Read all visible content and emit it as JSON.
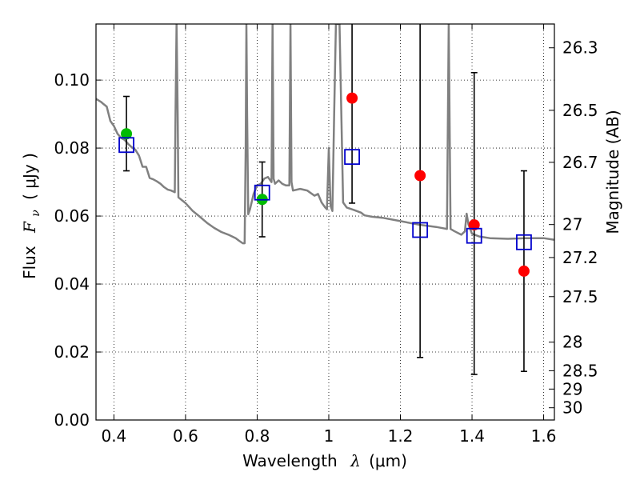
{
  "chart_data": {
    "type": "scatter",
    "xlabel_prefix": "Wavelength",
    "xlabel_symbol": "λ",
    "xlabel_unit": "(μm)",
    "ylabel_prefix": "Flux",
    "ylabel_symbol": "F",
    "ylabel_subscript": "ν",
    "ylabel_unit": "( μJy )",
    "right_ylabel": "Magnitude (AB)",
    "xlim": [
      0.35,
      1.63
    ],
    "ylim": [
      0.0,
      0.1165
    ],
    "x_ticks": [
      0.4,
      0.6,
      0.8,
      1.0,
      1.2,
      1.4,
      1.6
    ],
    "x_tick_labels": [
      "0.4",
      "0.6",
      "0.8",
      "1",
      "1.2",
      "1.4",
      "1.6"
    ],
    "y_ticks": [
      0.0,
      0.02,
      0.04,
      0.06,
      0.08,
      0.1
    ],
    "y_tick_labels": [
      "0.00",
      "0.02",
      "0.04",
      "0.06",
      "0.08",
      "0.10"
    ],
    "right_ticks": [
      {
        "label": "26.3",
        "flux": 0.1095
      },
      {
        "label": "26.5",
        "flux": 0.0911
      },
      {
        "label": "26.7",
        "flux": 0.0758
      },
      {
        "label": "27",
        "flux": 0.0575
      },
      {
        "label": "27.2",
        "flux": 0.0478
      },
      {
        "label": "27.5",
        "flux": 0.0363
      },
      {
        "label": "28",
        "flux": 0.0229
      },
      {
        "label": "28.5",
        "flux": 0.0145
      },
      {
        "label": "29",
        "flux": 0.0091
      },
      {
        "label": "30",
        "flux": 0.0036
      }
    ],
    "grid": true,
    "colors": {
      "sed": "#808080",
      "red_points": "#ff0000",
      "green_points": "#00bb00",
      "model_squares": "#0000cc",
      "errorbars": "#000000"
    },
    "series": [
      {
        "marker": "circle-green",
        "points": [
          {
            "x": 0.435,
            "y": 0.0842,
            "ylo": 0.0733,
            "yhi": 0.0952
          },
          {
            "x": 0.814,
            "y": 0.0649,
            "ylo": 0.0539,
            "yhi": 0.0759
          }
        ]
      },
      {
        "marker": "circle-red",
        "points": [
          {
            "x": 1.065,
            "y": 0.0947,
            "ylo": 0.0638,
            "yhi": 0.1165
          },
          {
            "x": 1.255,
            "y": 0.0719,
            "ylo": 0.0184,
            "yhi": 0.1165
          },
          {
            "x": 1.406,
            "y": 0.0574,
            "ylo": 0.0134,
            "yhi": 0.1022
          },
          {
            "x": 1.545,
            "y": 0.0438,
            "ylo": 0.0143,
            "yhi": 0.0733
          }
        ]
      },
      {
        "marker": "square-blue",
        "points": [
          {
            "x": 0.435,
            "y": 0.0809
          },
          {
            "x": 0.814,
            "y": 0.0669
          },
          {
            "x": 1.065,
            "y": 0.0774
          },
          {
            "x": 1.255,
            "y": 0.0559
          },
          {
            "x": 1.406,
            "y": 0.0542
          },
          {
            "x": 1.545,
            "y": 0.0523
          }
        ]
      },
      {
        "marker": "line-gray",
        "x": [
          0.35,
          0.365,
          0.37,
          0.38,
          0.39,
          0.4,
          0.41,
          0.42,
          0.43,
          0.44,
          0.45,
          0.46,
          0.47,
          0.48,
          0.49,
          0.5,
          0.51,
          0.52,
          0.53,
          0.54,
          0.55,
          0.56,
          0.57,
          0.572,
          0.575,
          0.578,
          0.58,
          0.6,
          0.62,
          0.64,
          0.66,
          0.68,
          0.7,
          0.72,
          0.74,
          0.75,
          0.76,
          0.765,
          0.768,
          0.77,
          0.772,
          0.775,
          0.78,
          0.79,
          0.8,
          0.81,
          0.82,
          0.83,
          0.84,
          0.843,
          0.846,
          0.85,
          0.86,
          0.87,
          0.88,
          0.89,
          0.893,
          0.896,
          0.9,
          0.92,
          0.94,
          0.96,
          0.97,
          0.98,
          0.99,
          0.995,
          1.0,
          1.005,
          1.01,
          1.015,
          1.02,
          1.025,
          1.03,
          1.04,
          1.05,
          1.07,
          1.09,
          1.1,
          1.12,
          1.15,
          1.2,
          1.25,
          1.3,
          1.33,
          1.335,
          1.34,
          1.35,
          1.37,
          1.38,
          1.385,
          1.39,
          1.4,
          1.42,
          1.45,
          1.5,
          1.55,
          1.6,
          1.63
        ],
        "y": [
          0.0945,
          0.0935,
          0.093,
          0.0922,
          0.088,
          0.0865,
          0.0842,
          0.083,
          0.0824,
          0.0812,
          0.0802,
          0.0795,
          0.0778,
          0.0745,
          0.0745,
          0.0712,
          0.0708,
          0.0702,
          0.0695,
          0.0685,
          0.0678,
          0.0675,
          0.067,
          0.09,
          0.1165,
          0.09,
          0.0655,
          0.0638,
          0.0615,
          0.0598,
          0.058,
          0.0565,
          0.0553,
          0.0545,
          0.0535,
          0.0527,
          0.052,
          0.052,
          0.08,
          0.1165,
          0.09,
          0.0605,
          0.062,
          0.0665,
          0.069,
          0.0695,
          0.071,
          0.0715,
          0.07,
          0.1165,
          0.071,
          0.0695,
          0.0705,
          0.0695,
          0.069,
          0.069,
          0.1165,
          0.07,
          0.0675,
          0.068,
          0.0675,
          0.066,
          0.0665,
          0.064,
          0.0625,
          0.062,
          0.08,
          0.063,
          0.0615,
          0.09,
          0.1165,
          0.1165,
          0.1165,
          0.064,
          0.0625,
          0.0618,
          0.061,
          0.0602,
          0.0598,
          0.0595,
          0.0585,
          0.0575,
          0.0568,
          0.0562,
          0.1165,
          0.0562,
          0.0556,
          0.0545,
          0.0555,
          0.0607,
          0.0575,
          0.0548,
          0.054,
          0.0535,
          0.0533,
          0.0535,
          0.0535,
          0.053
        ]
      }
    ]
  }
}
